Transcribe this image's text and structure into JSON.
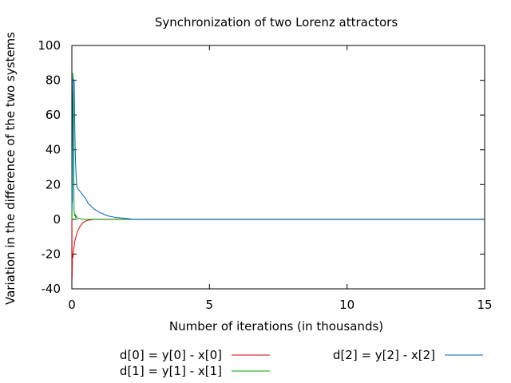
{
  "chart_data": {
    "type": "line",
    "title": "Synchronization of two Lorenz attractors",
    "xlabel": "Number of iterations (in thousands)",
    "ylabel": "Variation in the difference of the two systems",
    "xlim": [
      0,
      15
    ],
    "ylim": [
      -40,
      100
    ],
    "xticks": [
      0,
      5,
      10,
      15
    ],
    "yticks": [
      -40,
      -20,
      0,
      20,
      40,
      60,
      80,
      100
    ],
    "grid": false,
    "legend_position": "bottom",
    "series": [
      {
        "name": "d[0] = y[0] - x[0]",
        "color": "#e00000",
        "x": [
          0,
          0.01,
          0.02,
          0.04,
          0.06,
          0.08,
          0.1,
          0.15,
          0.2,
          0.3,
          0.4,
          0.5,
          0.6,
          0.8,
          1.0,
          1.3,
          1.6,
          2.0,
          15
        ],
        "y": [
          10,
          -34,
          -20,
          -22,
          -18,
          -16,
          -13,
          -10,
          -7,
          -4,
          -2,
          -1,
          -0.5,
          0,
          0,
          0,
          0,
          0,
          0
        ]
      },
      {
        "name": "d[1] = y[1] - x[1]",
        "color": "#00a000",
        "x": [
          0,
          0.02,
          0.04,
          0.06,
          0.08,
          0.1,
          0.12,
          0.14,
          0.16,
          0.2,
          0.3,
          0.4,
          1.0,
          2.0,
          15
        ],
        "y": [
          0,
          20,
          84,
          60,
          5,
          2,
          3,
          1,
          2,
          0.5,
          0.3,
          0,
          0,
          0,
          0
        ]
      },
      {
        "name": "d[2] = y[2] - x[2]",
        "color": "#0060c0",
        "x": [
          0,
          0.01,
          0.02,
          0.03,
          0.05,
          0.07,
          0.09,
          0.1,
          0.12,
          0.14,
          0.17,
          0.2,
          0.3,
          0.4,
          0.5,
          0.6,
          0.8,
          1.0,
          1.3,
          1.6,
          2.0,
          2.2,
          15
        ],
        "y": [
          5,
          40,
          10,
          70,
          81,
          80,
          78,
          60,
          40,
          30,
          20,
          18,
          16,
          14,
          12,
          9,
          6,
          4,
          2,
          1,
          0.5,
          0,
          0
        ]
      }
    ]
  }
}
